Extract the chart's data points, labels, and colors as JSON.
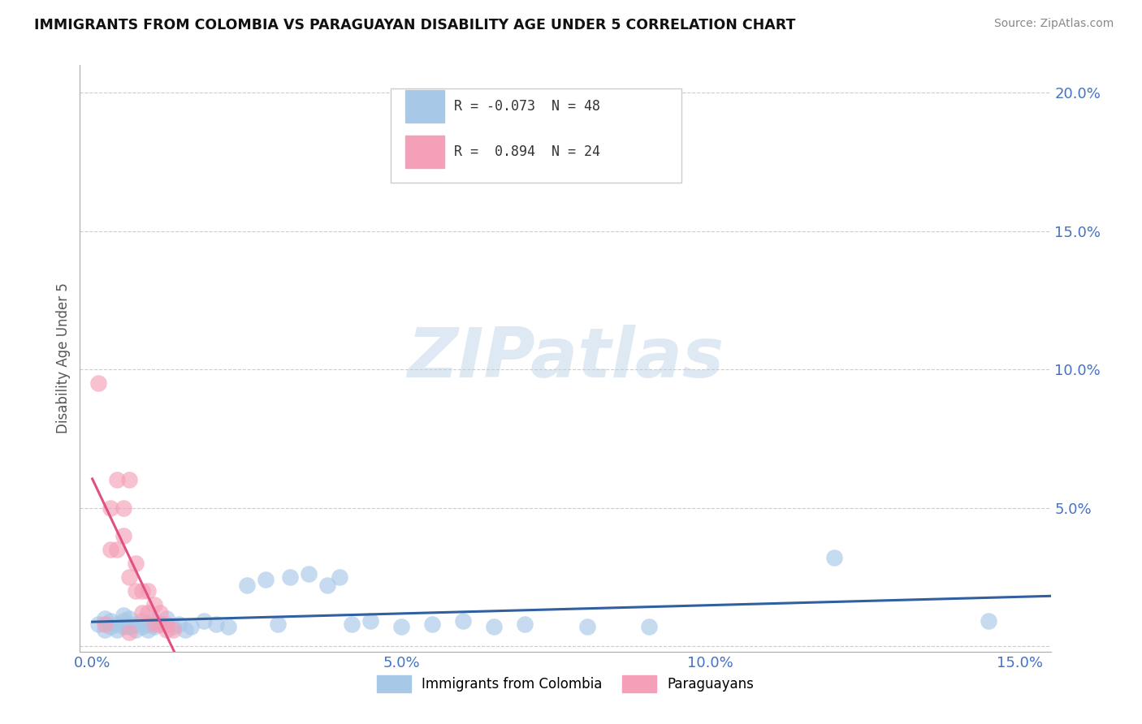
{
  "title": "IMMIGRANTS FROM COLOMBIA VS PARAGUAYAN DISABILITY AGE UNDER 5 CORRELATION CHART",
  "source": "Source: ZipAtlas.com",
  "xlabel_blue": "Immigrants from Colombia",
  "xlabel_pink": "Paraguayans",
  "ylabel": "Disability Age Under 5",
  "xlim": [
    -0.002,
    0.155
  ],
  "ylim": [
    -0.002,
    0.21
  ],
  "xticks": [
    0.0,
    0.025,
    0.05,
    0.075,
    0.1,
    0.125,
    0.15
  ],
  "xtick_labels": [
    "0.0%",
    "",
    "5.0%",
    "",
    "10.0%",
    "",
    "15.0%"
  ],
  "yticks": [
    0.0,
    0.05,
    0.1,
    0.15,
    0.2
  ],
  "ytick_labels": [
    "",
    "5.0%",
    "10.0%",
    "15.0%",
    "20.0%"
  ],
  "R_blue": -0.073,
  "N_blue": 48,
  "R_pink": 0.894,
  "N_pink": 24,
  "blue_color": "#a8c8e8",
  "pink_color": "#f4a0b8",
  "blue_line_color": "#3060a0",
  "pink_line_color": "#e05080",
  "watermark": "ZIPatlas",
  "blue_x": [
    0.001,
    0.002,
    0.002,
    0.003,
    0.003,
    0.004,
    0.004,
    0.005,
    0.005,
    0.005,
    0.006,
    0.006,
    0.006,
    0.007,
    0.007,
    0.008,
    0.008,
    0.009,
    0.009,
    0.01,
    0.01,
    0.011,
    0.012,
    0.013,
    0.014,
    0.015,
    0.016,
    0.018,
    0.02,
    0.022,
    0.025,
    0.028,
    0.03,
    0.032,
    0.035,
    0.038,
    0.04,
    0.042,
    0.045,
    0.05,
    0.055,
    0.06,
    0.065,
    0.07,
    0.08,
    0.09,
    0.12,
    0.145
  ],
  "blue_y": [
    0.008,
    0.006,
    0.01,
    0.007,
    0.009,
    0.008,
    0.006,
    0.007,
    0.009,
    0.011,
    0.008,
    0.007,
    0.01,
    0.006,
    0.008,
    0.007,
    0.009,
    0.006,
    0.008,
    0.007,
    0.009,
    0.008,
    0.01,
    0.007,
    0.008,
    0.006,
    0.007,
    0.009,
    0.008,
    0.007,
    0.022,
    0.024,
    0.008,
    0.025,
    0.026,
    0.022,
    0.025,
    0.008,
    0.009,
    0.007,
    0.008,
    0.009,
    0.007,
    0.008,
    0.007,
    0.007,
    0.032,
    0.009
  ],
  "pink_x": [
    0.001,
    0.002,
    0.003,
    0.003,
    0.004,
    0.004,
    0.005,
    0.005,
    0.006,
    0.006,
    0.006,
    0.007,
    0.007,
    0.008,
    0.008,
    0.009,
    0.009,
    0.01,
    0.01,
    0.011,
    0.011,
    0.012,
    0.012,
    0.013
  ],
  "pink_y": [
    0.095,
    0.008,
    0.05,
    0.035,
    0.035,
    0.06,
    0.05,
    0.04,
    0.06,
    0.025,
    0.005,
    0.03,
    0.02,
    0.02,
    0.012,
    0.02,
    0.012,
    0.015,
    0.008,
    0.008,
    0.012,
    0.008,
    0.006,
    0.006
  ],
  "pink_line_x0": 0.0,
  "pink_line_x1": 0.155,
  "blue_line_x0": 0.0,
  "blue_line_x1": 0.155
}
